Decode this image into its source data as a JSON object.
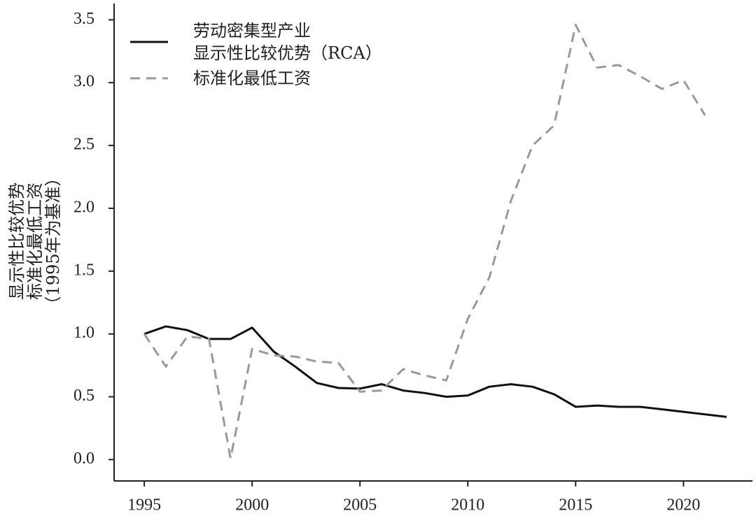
{
  "chart_data": {
    "type": "line",
    "ylabel": "显示性比较优势\n标准化最低工资\n（1995年为基准）",
    "x": [
      1995,
      1996,
      1997,
      1998,
      1999,
      2000,
      2001,
      2002,
      2003,
      2004,
      2005,
      2006,
      2007,
      2008,
      2009,
      2010,
      2011,
      2012,
      2013,
      2014,
      2015,
      2016,
      2017,
      2018,
      2019,
      2020,
      2021,
      2022
    ],
    "series": [
      {
        "name": "劳动密集型产业\n显示性比较优势（RCA）",
        "color": "#111111",
        "dash": "none",
        "values": [
          1.0,
          1.06,
          1.03,
          0.96,
          0.96,
          1.05,
          0.86,
          0.74,
          0.61,
          0.57,
          0.565,
          0.6,
          0.55,
          0.53,
          0.5,
          0.51,
          0.58,
          0.6,
          0.58,
          0.52,
          0.42,
          0.43,
          0.42,
          0.42,
          0.4,
          0.38,
          0.36,
          0.34
        ]
      },
      {
        "name": "标准化最低工资",
        "color": "#999999",
        "dash": "14 9",
        "values": [
          1.0,
          0.74,
          0.98,
          0.96,
          0.01,
          0.88,
          0.83,
          0.82,
          0.78,
          0.77,
          0.54,
          0.55,
          0.72,
          0.67,
          0.63,
          1.12,
          1.45,
          2.06,
          2.5,
          2.66,
          3.46,
          3.12,
          3.14,
          3.05,
          2.95,
          3.02,
          2.74,
          null
        ]
      }
    ],
    "xlim": [
      1993.6,
      2023.2
    ],
    "ylim": [
      -0.17,
      3.63
    ],
    "xticks": [
      1995,
      2000,
      2005,
      2010,
      2015,
      2020
    ],
    "yticks": [
      {
        "value": 0,
        "label": "0.0"
      },
      0.5,
      {
        "value": 1,
        "label": "1.0"
      },
      1.5,
      {
        "value": 2,
        "label": "2.0"
      },
      2.5,
      {
        "value": 3,
        "label": "3.0"
      },
      3.5
    ],
    "grid": false
  }
}
